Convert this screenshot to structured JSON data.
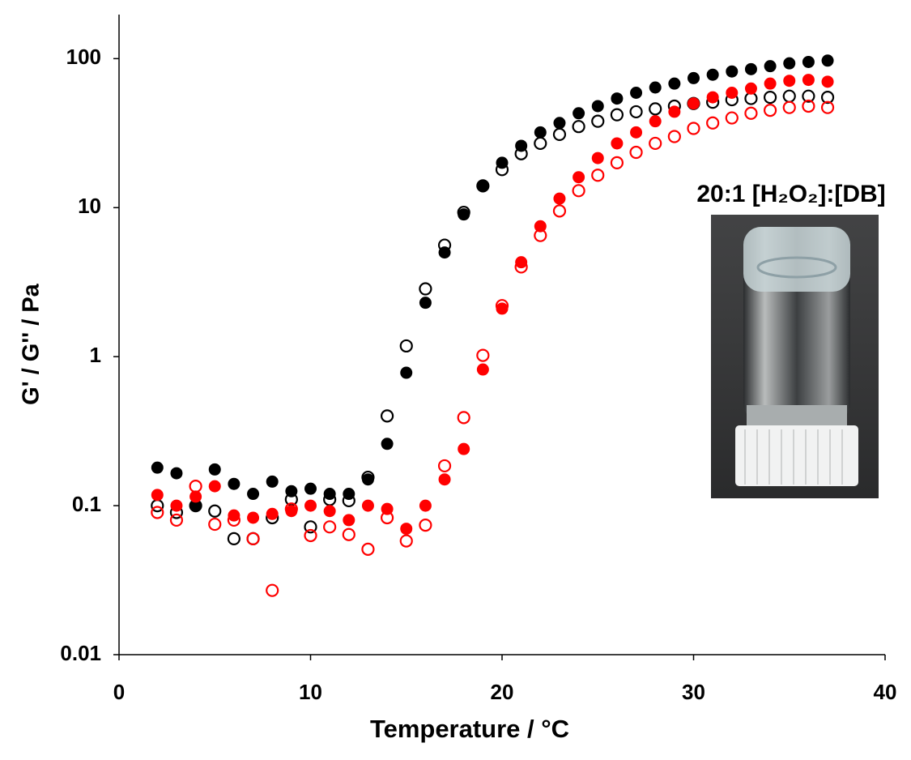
{
  "chart_data": {
    "type": "scatter",
    "y_label": "G' / G'' / Pa",
    "x_label": "Temperature / °C",
    "annotation": "20:1 [H₂O₂]:[DB]",
    "annotation_color": "#ff0000",
    "x": [
      2,
      3,
      4,
      5,
      6,
      7,
      8,
      9,
      10,
      11,
      12,
      13,
      14,
      15,
      16,
      17,
      18,
      19,
      20,
      21,
      22,
      23,
      24,
      25,
      26,
      27,
      28,
      29,
      30,
      31,
      32,
      33,
      34,
      35,
      36,
      37
    ],
    "series": [
      {
        "color": "#000000",
        "marker": "filled",
        "values": [
          0.18,
          0.165,
          0.1,
          0.175,
          0.14,
          0.12,
          0.145,
          0.125,
          0.13,
          0.12,
          0.12,
          0.15,
          0.26,
          0.78,
          2.3,
          5.0,
          9.0,
          14,
          20,
          26,
          32,
          37,
          43,
          48,
          54,
          59,
          64,
          68,
          74,
          78,
          82,
          85,
          89,
          93,
          95,
          97
        ]
      },
      {
        "color": "#000000",
        "marker": "open",
        "values": [
          0.1,
          0.09,
          0.1,
          0.092,
          0.06,
          0.06,
          0.083,
          0.11,
          0.072,
          0.11,
          0.108,
          0.155,
          0.4,
          1.18,
          2.85,
          5.6,
          9.3,
          14,
          18,
          23,
          27,
          31,
          35,
          38,
          42,
          44,
          46,
          48,
          50,
          51,
          53,
          54,
          55,
          56,
          56,
          55
        ]
      },
      {
        "color": "#ff0000",
        "marker": "filled",
        "values": [
          0.118,
          0.1,
          0.115,
          0.135,
          0.086,
          0.083,
          0.088,
          0.092,
          0.1,
          0.092,
          0.08,
          0.1,
          0.095,
          0.07,
          0.1,
          0.15,
          0.24,
          0.82,
          2.1,
          4.3,
          7.5,
          11.5,
          16,
          21.5,
          27,
          32,
          38,
          44,
          50,
          55,
          59,
          63,
          68,
          71,
          72,
          70
        ]
      },
      {
        "color": "#ff0000",
        "marker": "open",
        "values": [
          0.09,
          0.08,
          0.135,
          0.075,
          0.08,
          0.06,
          0.027,
          0.095,
          0.063,
          0.072,
          0.064,
          0.051,
          0.083,
          0.058,
          0.074,
          0.185,
          0.39,
          1.02,
          2.2,
          4.0,
          6.5,
          9.5,
          13,
          16.5,
          20,
          23.5,
          27,
          30,
          34,
          37,
          40,
          43,
          45,
          47,
          48,
          47
        ]
      }
    ],
    "xlim": [
      0,
      40
    ],
    "xticks": [
      0,
      10,
      20,
      30,
      40
    ],
    "ylim": [
      0.01,
      200
    ],
    "yticks": [
      0.01,
      0.1,
      1,
      10,
      100
    ],
    "log_y": true,
    "grid": false
  }
}
